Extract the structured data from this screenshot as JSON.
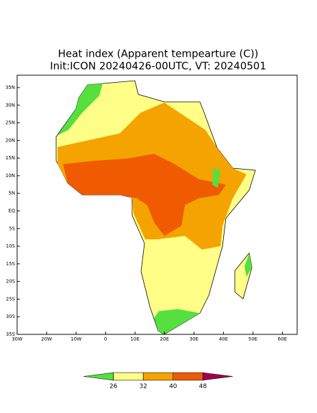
{
  "map": {
    "title": "Heat index (Apparent tempearture (C))",
    "subtitle": "Init:ICON 20240426-00UTC, VT: 20240501",
    "lonlim": [
      -30,
      65
    ],
    "latlim": [
      -35,
      38.5
    ],
    "lon_ticks": [
      {
        "value": -30,
        "label": "30W"
      },
      {
        "value": -20,
        "label": "20W"
      },
      {
        "value": -10,
        "label": "10W"
      },
      0,
      {
        "value": 10,
        "label": "10E"
      },
      {
        "value": 20,
        "label": "20E"
      },
      {
        "value": 30,
        "label": "30E"
      },
      {
        "value": 40,
        "label": "40E"
      },
      {
        "value": 50,
        "label": "50E"
      },
      {
        "value": 60,
        "label": "60E"
      }
    ],
    "lat_ticks": [
      {
        "value": 35,
        "label": "35N"
      },
      {
        "value": 30,
        "label": "30N"
      },
      {
        "value": 25,
        "label": "25N"
      },
      {
        "value": 20,
        "label": "20N"
      },
      {
        "value": 15,
        "label": "15N"
      },
      {
        "value": 10,
        "label": "10N"
      },
      {
        "value": 5,
        "label": "5N"
      },
      {
        "value": 0,
        "label": "EQ"
      },
      {
        "value": -5,
        "label": "5S"
      },
      {
        "value": -10,
        "label": "10S"
      },
      {
        "value": -15,
        "label": "15S"
      },
      {
        "value": -20,
        "label": "20S"
      },
      {
        "value": -25,
        "label": "25S"
      },
      {
        "value": -30,
        "label": "30S"
      },
      {
        "value": -35,
        "label": "35S"
      }
    ],
    "colorbar": {
      "levels": [
        26,
        32,
        40,
        48
      ],
      "colors": [
        "#55e040",
        "#ffff88",
        "#f5a300",
        "#f05a00",
        "#a00050"
      ]
    }
  }
}
